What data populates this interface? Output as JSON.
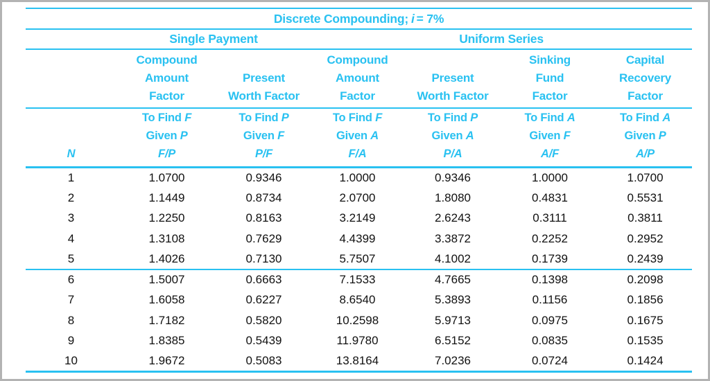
{
  "title": {
    "before": "Discrete Compounding;",
    "var_symbol": "i",
    "after": "= 7%"
  },
  "colors": {
    "accent": "#29C1F1",
    "frame_border": "#b3b3b3",
    "data_text": "#111111",
    "background": "#ffffff"
  },
  "table": {
    "group_headers": {
      "single_payment": "Single Payment",
      "uniform_series": "Uniform Series"
    },
    "columns": [
      {
        "label": "N"
      },
      {
        "title_lines": [
          "Compound",
          "Amount",
          "Factor"
        ],
        "find": "To Find",
        "find_letter": "F",
        "given": "Given",
        "given_letter": "P",
        "ratio": "F/P"
      },
      {
        "title_lines": [
          "Present",
          "Worth Factor"
        ],
        "find": "To Find",
        "find_letter": "P",
        "given": "Given",
        "given_letter": "F",
        "ratio": "P/F"
      },
      {
        "title_lines": [
          "Compound",
          "Amount",
          "Factor"
        ],
        "find": "To Find",
        "find_letter": "F",
        "given": "Given",
        "given_letter": "A",
        "ratio": "F/A"
      },
      {
        "title_lines": [
          "Present",
          "Worth Factor"
        ],
        "find": "To Find",
        "find_letter": "P",
        "given": "Given",
        "given_letter": "A",
        "ratio": "P/A"
      },
      {
        "title_lines": [
          "Sinking",
          "Fund",
          "Factor"
        ],
        "find": "To Find",
        "find_letter": "A",
        "given": "Given",
        "given_letter": "F",
        "ratio": "A/F"
      },
      {
        "title_lines": [
          "Capital",
          "Recovery",
          "Factor"
        ],
        "find": "To Find",
        "find_letter": "A",
        "given": "Given",
        "given_letter": "P",
        "ratio": "A/P"
      }
    ],
    "rows": [
      {
        "n": "1",
        "values": [
          "1.0700",
          "0.9346",
          "1.0000",
          "0.9346",
          "1.0000",
          "1.0700"
        ]
      },
      {
        "n": "2",
        "values": [
          "1.1449",
          "0.8734",
          "2.0700",
          "1.8080",
          "0.4831",
          "0.5531"
        ]
      },
      {
        "n": "3",
        "values": [
          "1.2250",
          "0.8163",
          "3.2149",
          "2.6243",
          "0.3111",
          "0.3811"
        ]
      },
      {
        "n": "4",
        "values": [
          "1.3108",
          "0.7629",
          "4.4399",
          "3.3872",
          "0.2252",
          "0.2952"
        ]
      },
      {
        "n": "5",
        "values": [
          "1.4026",
          "0.7130",
          "5.7507",
          "4.1002",
          "0.1739",
          "0.2439"
        ],
        "group_end": true
      },
      {
        "n": "6",
        "values": [
          "1.5007",
          "0.6663",
          "7.1533",
          "4.7665",
          "0.1398",
          "0.2098"
        ]
      },
      {
        "n": "7",
        "values": [
          "1.6058",
          "0.6227",
          "8.6540",
          "5.3893",
          "0.1156",
          "0.1856"
        ]
      },
      {
        "n": "8",
        "values": [
          "1.7182",
          "0.5820",
          "10.2598",
          "5.9713",
          "0.0975",
          "0.1675"
        ]
      },
      {
        "n": "9",
        "values": [
          "1.8385",
          "0.5439",
          "11.9780",
          "6.5152",
          "0.0835",
          "0.1535"
        ]
      },
      {
        "n": "10",
        "values": [
          "1.9672",
          "0.5083",
          "13.8164",
          "7.0236",
          "0.0724",
          "0.1424"
        ]
      }
    ]
  }
}
